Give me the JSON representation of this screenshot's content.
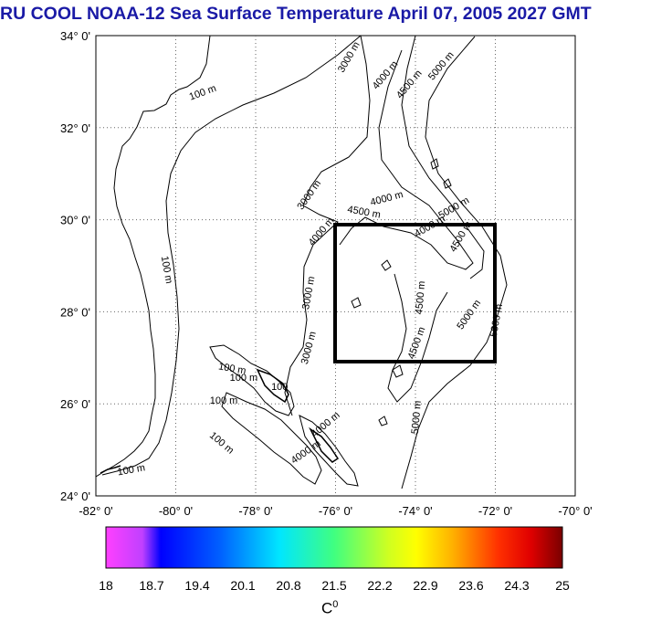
{
  "title": "RU COOL  NOAA-12 Sea Surface Temperature April 07, 2005 2027 GMT",
  "map": {
    "lat_labels": [
      "34° 0'",
      "32° 0'",
      "30° 0'",
      "28° 0'",
      "26° 0'",
      "24° 0'"
    ],
    "lon_labels": [
      "-82° 0'",
      "-80° 0'",
      "-78° 0'",
      "-76° 0'",
      "-74° 0'",
      "-72° 0'",
      "-70° 0'"
    ],
    "lat_range": [
      24,
      34
    ],
    "lon_range": [
      -82,
      -70
    ],
    "grid": "dotted",
    "contour_labels": [
      {
        "text": "100 m",
        "lon": -79.3,
        "lat": 32.7,
        "angle": -20
      },
      {
        "text": "100 m",
        "lon": -80.3,
        "lat": 28.9,
        "angle": 80
      },
      {
        "text": "100 m",
        "lon": -78.6,
        "lat": 26.7,
        "angle": 10
      },
      {
        "text": "100 m",
        "lon": -78.3,
        "lat": 26.5,
        "angle": 0
      },
      {
        "text": "100",
        "lon": -77.4,
        "lat": 26.3,
        "angle": 0
      },
      {
        "text": "100 m",
        "lon": -78.8,
        "lat": 26.0,
        "angle": 0
      },
      {
        "text": "100 m",
        "lon": -78.9,
        "lat": 25.1,
        "angle": 40
      },
      {
        "text": "100 m",
        "lon": -81.1,
        "lat": 24.5,
        "angle": -10
      },
      {
        "text": "3000 m",
        "lon": -75.6,
        "lat": 33.5,
        "angle": -60
      },
      {
        "text": "4000 m",
        "lon": -74.7,
        "lat": 33.1,
        "angle": -50
      },
      {
        "text": "4500 m",
        "lon": -74.1,
        "lat": 32.9,
        "angle": -50
      },
      {
        "text": "5000 m",
        "lon": -73.3,
        "lat": 33.3,
        "angle": -50
      },
      {
        "text": "3000 m",
        "lon": -76.6,
        "lat": 30.5,
        "angle": -55
      },
      {
        "text": "4000 m",
        "lon": -74.7,
        "lat": 30.4,
        "angle": -15
      },
      {
        "text": "4500 m",
        "lon": -75.3,
        "lat": 30.1,
        "angle": 10
      },
      {
        "text": "5000 m",
        "lon": -73.0,
        "lat": 30.2,
        "angle": -30
      },
      {
        "text": "4000 m",
        "lon": -73.6,
        "lat": 29.8,
        "angle": -30
      },
      {
        "text": "4500 m",
        "lon": -72.8,
        "lat": 29.6,
        "angle": -60
      },
      {
        "text": "4000 m",
        "lon": -76.3,
        "lat": 29.7,
        "angle": -50
      },
      {
        "text": "3000 m",
        "lon": -76.6,
        "lat": 28.4,
        "angle": -80
      },
      {
        "text": "4500 m",
        "lon": -73.8,
        "lat": 28.3,
        "angle": -85
      },
      {
        "text": "5000 m",
        "lon": -72.6,
        "lat": 27.9,
        "angle": -55
      },
      {
        "text": "5000 m",
        "lon": -71.9,
        "lat": 27.8,
        "angle": -80
      },
      {
        "text": "3000 m",
        "lon": -76.6,
        "lat": 27.2,
        "angle": -75
      },
      {
        "text": "4500 m",
        "lon": -73.9,
        "lat": 27.3,
        "angle": -70
      },
      {
        "text": "5000 m",
        "lon": -73.9,
        "lat": 25.7,
        "angle": -85
      },
      {
        "text": "4000 m",
        "lon": -76.2,
        "lat": 25.5,
        "angle": -40
      },
      {
        "text": "4000 m",
        "lon": -76.7,
        "lat": 24.9,
        "angle": -35
      }
    ]
  },
  "colorbar": {
    "ticks": [
      "18",
      "18.7",
      "19.4",
      "20.1",
      "20.8",
      "21.5",
      "22.2",
      "22.9",
      "23.6",
      "24.3",
      "25"
    ],
    "min": 18,
    "max": 25,
    "unit": "C",
    "unit_sup": "0"
  }
}
